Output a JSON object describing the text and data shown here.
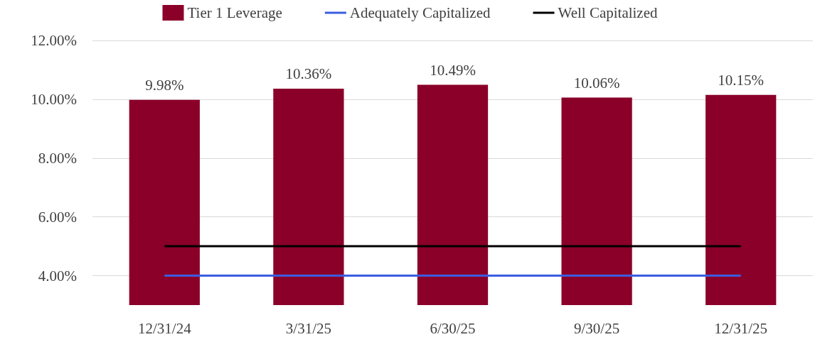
{
  "chart_data": {
    "type": "bar",
    "categories": [
      "12/31/24",
      "3/31/25",
      "6/30/25",
      "9/30/25",
      "12/31/25"
    ],
    "series": [
      {
        "name": "Tier 1 Leverage",
        "color": "#8b0029",
        "values": [
          9.98,
          10.36,
          10.49,
          10.06,
          10.15
        ],
        "value_labels": [
          "9.98%",
          "10.36%",
          "10.49%",
          "10.06%",
          "10.15%"
        ]
      },
      {
        "name": "Adequately Capitalized",
        "type": "line",
        "color": "#3b5ce0",
        "values": [
          4,
          4,
          4,
          4,
          4
        ]
      },
      {
        "name": "Well Capitalized",
        "type": "line",
        "color": "#000000",
        "values": [
          5,
          5,
          5,
          5,
          5
        ]
      }
    ],
    "ylim": [
      3,
      12
    ],
    "yticks": [
      {
        "value": 4,
        "label": "4.00%"
      },
      {
        "value": 6,
        "label": "6.00%"
      },
      {
        "value": 8,
        "label": "8.00%"
      },
      {
        "value": 10,
        "label": "10.00%"
      },
      {
        "value": 12,
        "label": "12.00%"
      }
    ],
    "grid": "y",
    "legend": "top",
    "marker": "none",
    "line_style": "solid"
  }
}
